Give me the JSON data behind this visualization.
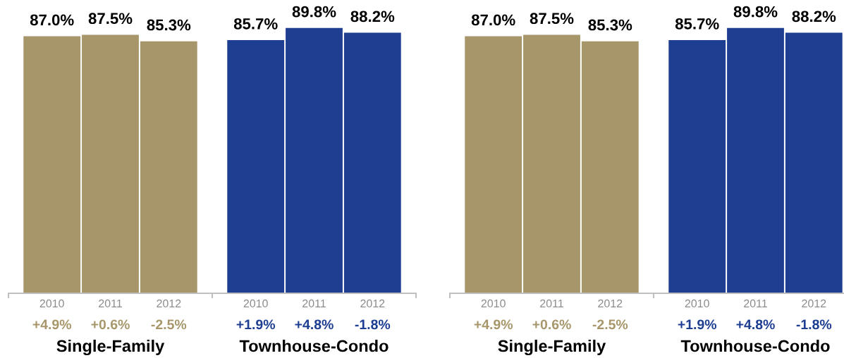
{
  "chart_data": [
    {
      "type": "bar",
      "categories": [
        "2010",
        "2011",
        "2012"
      ],
      "values": [
        87.0,
        87.5,
        85.3
      ],
      "color": "#a6966a",
      "value_labels": [
        "87.0%",
        "87.5%",
        "85.3%"
      ],
      "xlabel": "Single-Family",
      "annotations": [
        "+4.9%",
        "+0.6%",
        "-2.5%"
      ],
      "tick_labels": "x"
    },
    {
      "type": "bar",
      "categories": [
        "2010",
        "2011",
        "2012"
      ],
      "values": [
        85.7,
        89.8,
        88.2
      ],
      "color": "#1e3e92",
      "value_labels": [
        "85.7%",
        "89.8%",
        "88.2%"
      ],
      "xlabel": "Townhouse-Condo",
      "annotations": [
        "+1.9%",
        "+4.8%",
        "-1.8%"
      ],
      "tick_labels": "x"
    },
    {
      "type": "bar",
      "categories": [
        "2010",
        "2011",
        "2012"
      ],
      "values": [
        87.0,
        87.5,
        85.3
      ],
      "color": "#a6966a",
      "value_labels": [
        "87.0%",
        "87.5%",
        "85.3%"
      ],
      "xlabel": "Single-Family",
      "annotations": [
        "+4.9%",
        "+0.6%",
        "-2.5%"
      ],
      "tick_labels": "x"
    },
    {
      "type": "bar",
      "categories": [
        "2010",
        "2011",
        "2012"
      ],
      "values": [
        85.7,
        89.8,
        88.2
      ],
      "color": "#1e3e92",
      "value_labels": [
        "85.7%",
        "89.8%",
        "88.2%"
      ],
      "xlabel": "Townhouse-Condo",
      "annotations": [
        "+1.9%",
        "+4.8%",
        "-1.8%"
      ],
      "tick_labels": "x"
    }
  ]
}
